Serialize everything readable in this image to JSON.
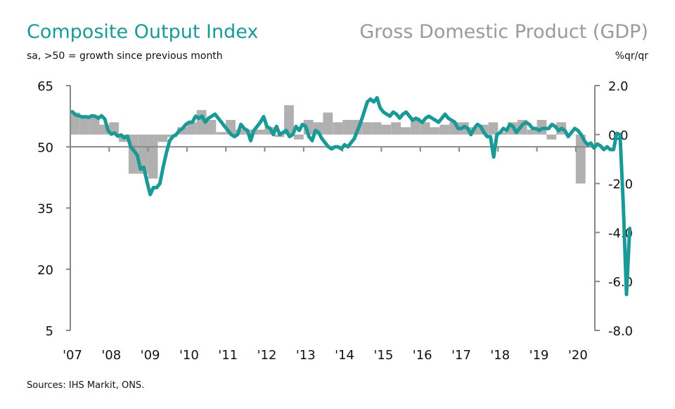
{
  "chart_data": {
    "type": "bar+line",
    "title_left": "Composite Output Index",
    "subtitle_left": "sa, >50 = growth since previous month",
    "title_right": "Gross Domestic Product (GDP)",
    "subtitle_right": "%qr/qr",
    "source": "Sources: IHS Markit, ONS.",
    "colors": {
      "line": "#1a9a96",
      "bars": "#b0b0b0",
      "axis": "#888888"
    },
    "left_axis": {
      "ylim": [
        5,
        65
      ],
      "ticks": [
        "65",
        "50",
        "35",
        "20",
        "5"
      ],
      "tick_values": [
        65,
        50,
        35,
        20,
        5
      ]
    },
    "right_axis": {
      "ylim": [
        -8,
        2
      ],
      "ticks": [
        "2.0",
        "0.0",
        "-2.0",
        "-4.0",
        "-6.0",
        "-8.0"
      ],
      "tick_values": [
        2,
        0,
        -2,
        -4,
        -6,
        -8
      ]
    },
    "x_ticks": [
      "'07",
      "'08",
      "'09",
      "'10",
      "'11",
      "'12",
      "'13",
      "'14",
      "'15",
      "'16",
      "'17",
      "'18",
      "'19",
      "'20"
    ],
    "series": [
      {
        "name": "GDP",
        "axis": "right",
        "frequency": "quarterly",
        "start": "2007 Q1",
        "values": [
          0.9,
          0.7,
          0.7,
          0.4,
          0.5,
          -0.3,
          -1.6,
          -1.6,
          -1.8,
          -0.3,
          -0.1,
          0.3,
          0.5,
          1.0,
          0.6,
          0.1,
          0.6,
          0.2,
          0.2,
          0.2,
          0.3,
          -0.1,
          1.2,
          -0.2,
          0.6,
          0.5,
          0.9,
          0.5,
          0.6,
          0.6,
          0.5,
          0.5,
          0.4,
          0.5,
          0.3,
          0.7,
          0.5,
          0.3,
          0.4,
          0.5,
          0.5,
          0.3,
          0.4,
          0.5,
          0.1,
          0.5,
          0.6,
          0.2,
          0.6,
          -0.2,
          0.5,
          0.0,
          -2.0
        ]
      },
      {
        "name": "Composite Output Index",
        "axis": "left",
        "frequency": "monthly",
        "start": "2007-01",
        "values": [
          58.6,
          57.8,
          57.6,
          57.3,
          57.4,
          57.2,
          57.6,
          57.5,
          57.0,
          57.6,
          56.8,
          54.0,
          53.1,
          53.4,
          52.6,
          52.9,
          52.2,
          52.6,
          50.0,
          49.0,
          48.0,
          44.5,
          45.0,
          41.5,
          38.3,
          40.0,
          40.0,
          41.0,
          45.0,
          48.5,
          51.5,
          52.5,
          53.0,
          54.0,
          54.5,
          55.5,
          56.0,
          56.0,
          57.5,
          57.0,
          57.5,
          56.0,
          57.0,
          57.5,
          58.0,
          57.0,
          56.0,
          55.0,
          54.0,
          53.0,
          52.5,
          53.0,
          55.5,
          54.5,
          54.0,
          51.5,
          54.0,
          55.0,
          56.0,
          57.4,
          55.0,
          54.5,
          53.0,
          55.0,
          53.0,
          53.5,
          54.0,
          52.5,
          53.0,
          55.0,
          54.0,
          55.5,
          55.0,
          52.5,
          51.5,
          54.0,
          53.5,
          52.0,
          51.0,
          50.0,
          49.5,
          50.0,
          50.0,
          49.5,
          50.5,
          50.0,
          51.0,
          52.0,
          54.0,
          56.0,
          58.5,
          61.0,
          61.7,
          61.0,
          62.0,
          59.5,
          58.5,
          58.0,
          57.5,
          58.5,
          58.0,
          57.0,
          58.0,
          58.5,
          57.5,
          56.5,
          57.0,
          56.5,
          56.0,
          57.0,
          57.5,
          57.0,
          56.5,
          56.0,
          57.0,
          58.0,
          57.0,
          56.5,
          56.0,
          54.5,
          54.5,
          55.0,
          54.5,
          53.0,
          54.5,
          55.5,
          55.0,
          53.5,
          52.5,
          52.5,
          47.5,
          53.0,
          53.5,
          54.5,
          54.0,
          55.5,
          55.0,
          53.5,
          54.5,
          55.5,
          56.0,
          55.5,
          54.5,
          54.5,
          54.0,
          54.5,
          54.5,
          54.5,
          55.5,
          55.0,
          54.0,
          54.5,
          54.0,
          52.5,
          53.5,
          54.5,
          54.0,
          53.0,
          51.5,
          50.5,
          50.9,
          49.7,
          50.7,
          50.2,
          49.3,
          50.0,
          49.3,
          49.3,
          53.3,
          53.0,
          36.0,
          13.8,
          30.0
        ]
      }
    ]
  }
}
